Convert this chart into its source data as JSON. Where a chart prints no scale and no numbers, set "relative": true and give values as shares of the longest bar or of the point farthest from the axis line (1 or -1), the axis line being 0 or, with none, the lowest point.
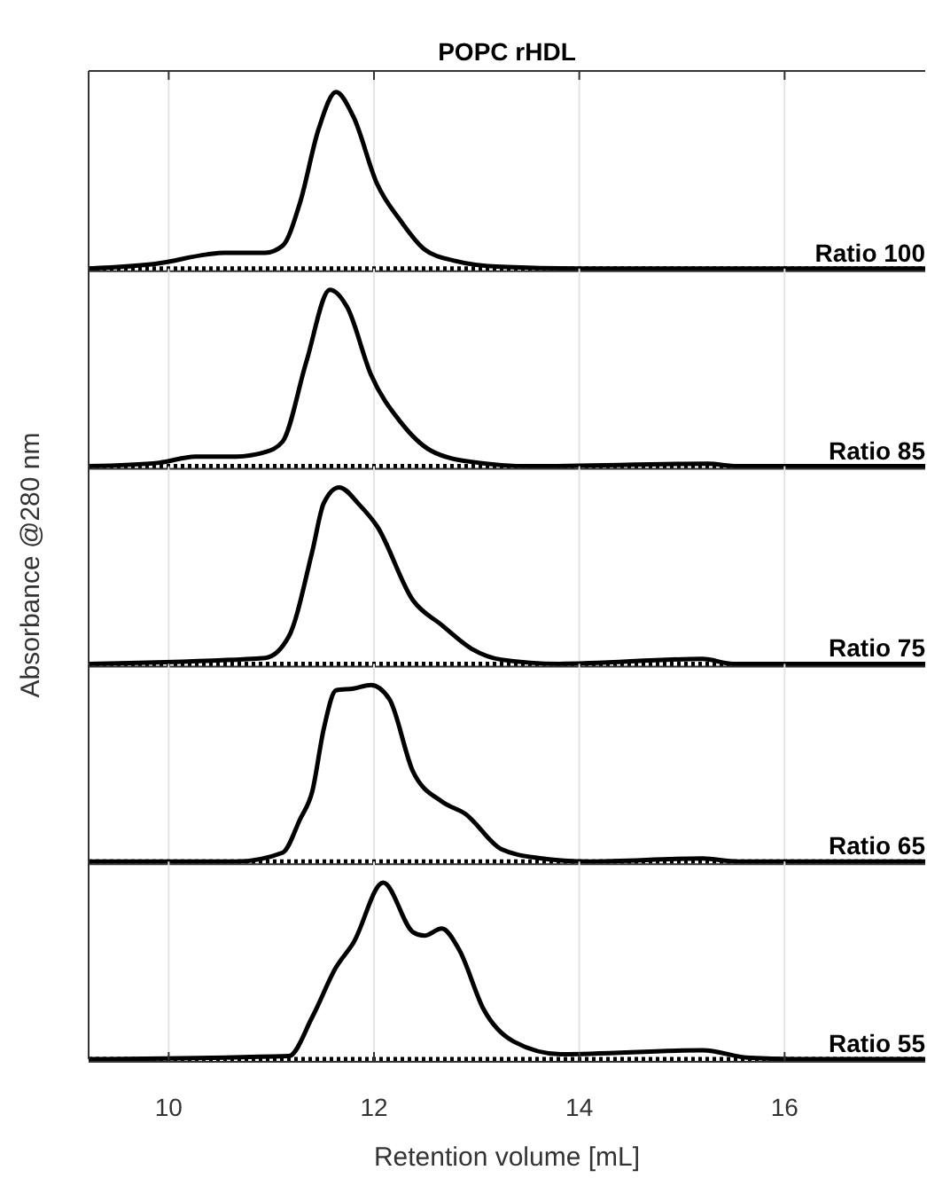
{
  "chart_data": [
    {
      "type": "line",
      "title": "POPC rHDL",
      "relative": true,
      "xlim": [
        9.22,
        17.37
      ],
      "xticks": [
        10,
        12,
        14,
        16
      ],
      "grid": "x",
      "tick_labels": false,
      "annotations": [
        "Ratio 100"
      ],
      "ref_lines": [
        {
          "axis": "y",
          "value": 0,
          "line_style": "dotted"
        }
      ],
      "series": [
        {
          "color": "#000000",
          "x": [
            9.22,
            9.91,
            10.37,
            10.54,
            10.94,
            11.11,
            11.28,
            11.46,
            11.63,
            11.8,
            12.03,
            12.26,
            12.49,
            12.78,
            13.24,
            14.0,
            17.37
          ],
          "values": [
            0,
            0.03,
            0.08,
            0.09,
            0.09,
            0.13,
            0.375,
            0.79,
            1.0,
            0.86,
            0.48,
            0.27,
            0.11,
            0.045,
            0.01,
            0,
            0
          ]
        }
      ]
    },
    {
      "type": "line",
      "relative": true,
      "xlim": [
        9.22,
        17.37
      ],
      "xticks": [
        10,
        12,
        14,
        16
      ],
      "grid": "x",
      "tick_labels": false,
      "annotations": [
        "Ratio 85"
      ],
      "ref_lines": [
        {
          "axis": "y",
          "value": 0,
          "line_style": "dotted"
        }
      ],
      "series": [
        {
          "color": "#000000",
          "x": [
            9.22,
            9.91,
            10.26,
            10.66,
            10.94,
            11.11,
            11.34,
            11.57,
            11.74,
            11.97,
            12.26,
            12.55,
            12.95,
            13.53,
            15.25,
            15.54,
            17.37
          ],
          "values": [
            0,
            0.02,
            0.055,
            0.055,
            0.08,
            0.14,
            0.59,
            1.0,
            0.9,
            0.52,
            0.25,
            0.09,
            0.025,
            0,
            0.014,
            0,
            0
          ]
        }
      ]
    },
    {
      "type": "line",
      "ylabel": "Absorbance @280 nm",
      "relative": true,
      "xlim": [
        9.22,
        17.37
      ],
      "xticks": [
        10,
        12,
        14,
        16
      ],
      "grid": "x",
      "tick_labels": false,
      "annotations": [
        "Ratio 75"
      ],
      "ref_lines": [
        {
          "axis": "y",
          "value": 0,
          "line_style": "dotted"
        }
      ],
      "series": [
        {
          "color": "#000000",
          "x": [
            9.22,
            10.94,
            11.17,
            11.4,
            11.51,
            11.66,
            11.86,
            12.03,
            12.38,
            12.66,
            12.95,
            13.24,
            13.8,
            15.2,
            15.5,
            17.37
          ],
          "values": [
            0,
            0.034,
            0.155,
            0.64,
            0.91,
            1.0,
            0.9,
            0.78,
            0.36,
            0.22,
            0.086,
            0.024,
            0,
            0.028,
            0,
            0
          ]
        }
      ]
    },
    {
      "type": "line",
      "relative": true,
      "xlim": [
        9.22,
        17.37
      ],
      "xticks": [
        10,
        12,
        14,
        16
      ],
      "grid": "x",
      "tick_labels": false,
      "annotations": [
        "Ratio 65"
      ],
      "ref_lines": [
        {
          "axis": "y",
          "value": 0,
          "line_style": "dotted"
        }
      ],
      "series": [
        {
          "color": "#000000",
          "x": [
            9.22,
            10.66,
            11.11,
            11.28,
            11.4,
            11.51,
            11.63,
            11.8,
            11.97,
            12.15,
            12.38,
            12.66,
            12.89,
            13.24,
            13.6,
            14.1,
            15.2,
            15.54,
            17.37
          ],
          "values": [
            0,
            0,
            0.05,
            0.24,
            0.4,
            0.75,
            0.97,
            0.98,
            1.0,
            0.92,
            0.51,
            0.34,
            0.27,
            0.07,
            0.02,
            0,
            0.017,
            0,
            0
          ]
        }
      ]
    },
    {
      "type": "line",
      "xlabel": "Retention volume [mL]",
      "relative": true,
      "xlim": [
        9.22,
        17.37
      ],
      "xticks": [
        10,
        12,
        14,
        16
      ],
      "grid": "x",
      "tick_labels": "x",
      "annotations": [
        "Ratio 55"
      ],
      "ref_lines": [
        {
          "axis": "y",
          "value": 0,
          "line_style": "dotted"
        }
      ],
      "series": [
        {
          "color": "#000000",
          "x": [
            9.22,
            11.17,
            11.4,
            11.63,
            11.8,
            12.09,
            12.38,
            12.49,
            12.66,
            12.83,
            13.07,
            13.36,
            13.82,
            15.2,
            15.66,
            16.1,
            17.37
          ],
          "values": [
            0,
            0.017,
            0.24,
            0.52,
            0.66,
            1.0,
            0.72,
            0.7,
            0.74,
            0.62,
            0.28,
            0.1,
            0.028,
            0.05,
            0.007,
            0,
            0
          ]
        }
      ]
    }
  ]
}
